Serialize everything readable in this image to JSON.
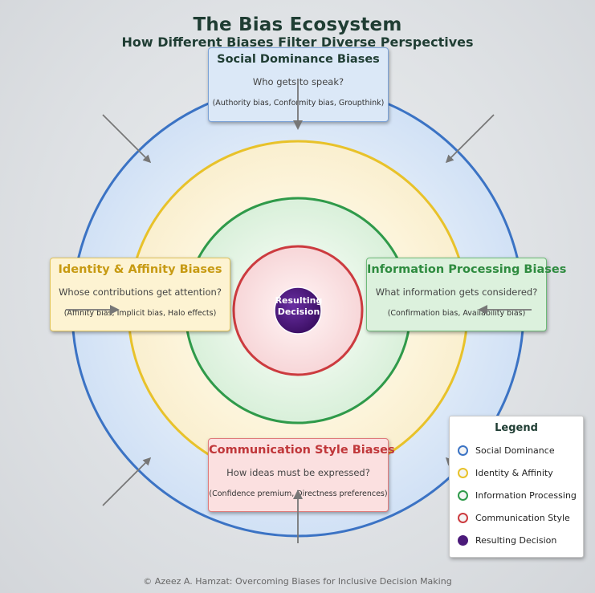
{
  "title": "The Bias Ecosystem",
  "subtitle": "How Different Biases Filter Diverse Perspectives",
  "boxes": {
    "social": {
      "title": "Social Dominance Biases",
      "question": "Who gets to speak?",
      "examples": "(Authority bias, Conformity bias, Groupthink)"
    },
    "identity": {
      "title": "Identity & Affinity Biases",
      "question": "Whose contributions get attention?",
      "examples": "(Affinity bias, Implicit bias, Halo effects)"
    },
    "info": {
      "title": "Information Processing Biases",
      "question": "What information gets considered?",
      "examples": "(Confirmation bias, Availability bias)"
    },
    "comm": {
      "title": "Communication Style Biases",
      "question": "How ideas must be expressed?",
      "examples": "(Confidence premium, Directness preferences)"
    }
  },
  "center": {
    "line1": "Resulting",
    "line2": "Decision"
  },
  "legend": {
    "title": "Legend",
    "items": [
      {
        "label": "Social Dominance",
        "color": "#3b73c4"
      },
      {
        "label": "Identity & Affinity",
        "color": "#e8c22a"
      },
      {
        "label": "Information Processing",
        "color": "#2f9a4a"
      },
      {
        "label": "Communication Style",
        "color": "#cc3b3f"
      },
      {
        "label": "Resulting Decision",
        "color": "#4b1a7a"
      }
    ]
  },
  "footer": "© Azeez A. Hamzat: Overcoming Biases for Inclusive Decision Making"
}
